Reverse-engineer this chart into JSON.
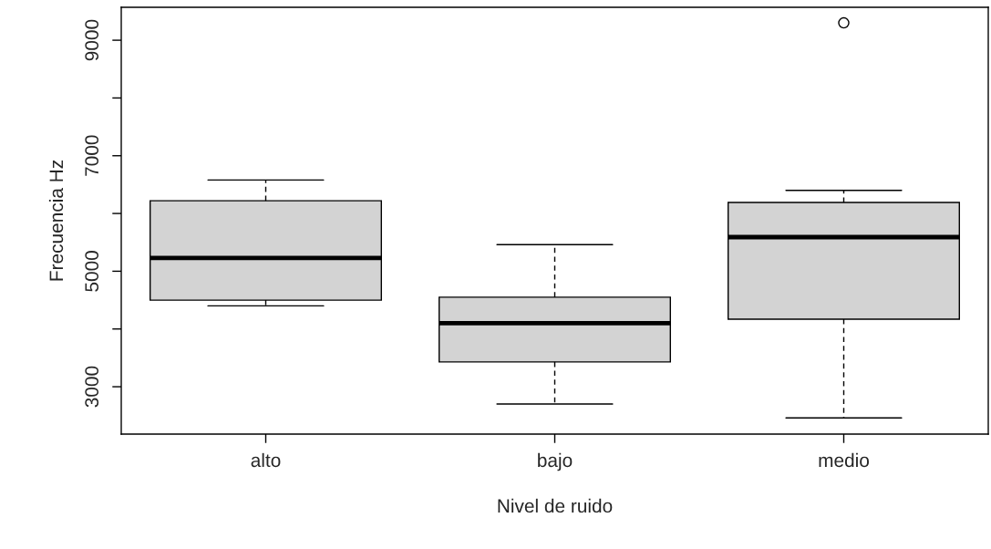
{
  "chart_data": {
    "type": "box",
    "xlabel": "Nivel de ruido",
    "ylabel": "Frecuencia Hz",
    "categories": [
      "alto",
      "bajo",
      "medio"
    ],
    "boxes": [
      {
        "low": 4400,
        "q1": 4500,
        "median": 5230,
        "q3": 6220,
        "high": 6580
      },
      {
        "low": 2700,
        "q1": 3430,
        "median": 4100,
        "q3": 4550,
        "high": 5460
      },
      {
        "low": 2460,
        "q1": 4170,
        "median": 5590,
        "q3": 6190,
        "high": 6400,
        "outliers": [
          9300
        ]
      }
    ],
    "color": "#d3d3d3",
    "ylim": [
      2180,
      9570
    ],
    "yticks": [
      3000,
      {
        "value": 4000,
        "label": null
      },
      5000,
      {
        "value": 6000,
        "label": null
      },
      7000,
      {
        "value": 8000,
        "label": null
      },
      9000
    ],
    "grid": false,
    "legend": false
  }
}
